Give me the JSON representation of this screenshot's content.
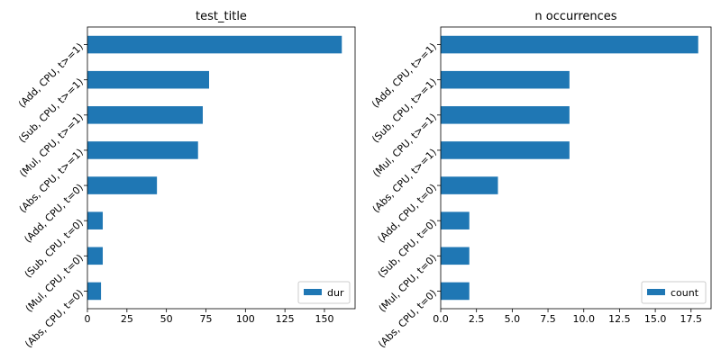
{
  "chart_data": [
    {
      "type": "barh",
      "title": "test_title",
      "categories": [
        "(Add, CPU, t>=1)",
        "(Sub, CPU, t>=1)",
        "(Mul, CPU, t>=1)",
        "(Abs, CPU, t>=1)",
        "(Add, CPU, t=0)",
        "(Sub, CPU, t=0)",
        "(Mul, CPU, t=0)",
        "(Abs, CPU, t=0)"
      ],
      "series": [
        {
          "name": "dur",
          "color": "#1f77b4",
          "values": [
            161,
            77,
            73,
            70,
            44,
            9.7,
            9.7,
            8.6
          ]
        }
      ],
      "xlim": [
        0,
        169.4
      ],
      "xticks": [
        0,
        25,
        50,
        75,
        100,
        125,
        150
      ],
      "legend": "lower right"
    },
    {
      "type": "barh",
      "title": "n occurrences",
      "categories": [
        "(Add, CPU, t>=1)",
        "(Sub, CPU, t>=1)",
        "(Mul, CPU, t>=1)",
        "(Abs, CPU, t>=1)",
        "(Add, CPU, t=0)",
        "(Sub, CPU, t=0)",
        "(Mul, CPU, t=0)",
        "(Abs, CPU, t=0)"
      ],
      "series": [
        {
          "name": "count",
          "color": "#1f77b4",
          "values": [
            18,
            9,
            9,
            9,
            4,
            2,
            2,
            2
          ]
        }
      ],
      "xlim": [
        0,
        18.9
      ],
      "xticks": [
        {
          "value": 0,
          "label": "0.0"
        },
        2.5,
        {
          "value": 5,
          "label": "5.0"
        },
        7.5,
        {
          "value": 10,
          "label": "10.0"
        },
        12.5,
        {
          "value": 15,
          "label": "15.0"
        },
        17.5
      ],
      "legend": "lower right"
    }
  ]
}
